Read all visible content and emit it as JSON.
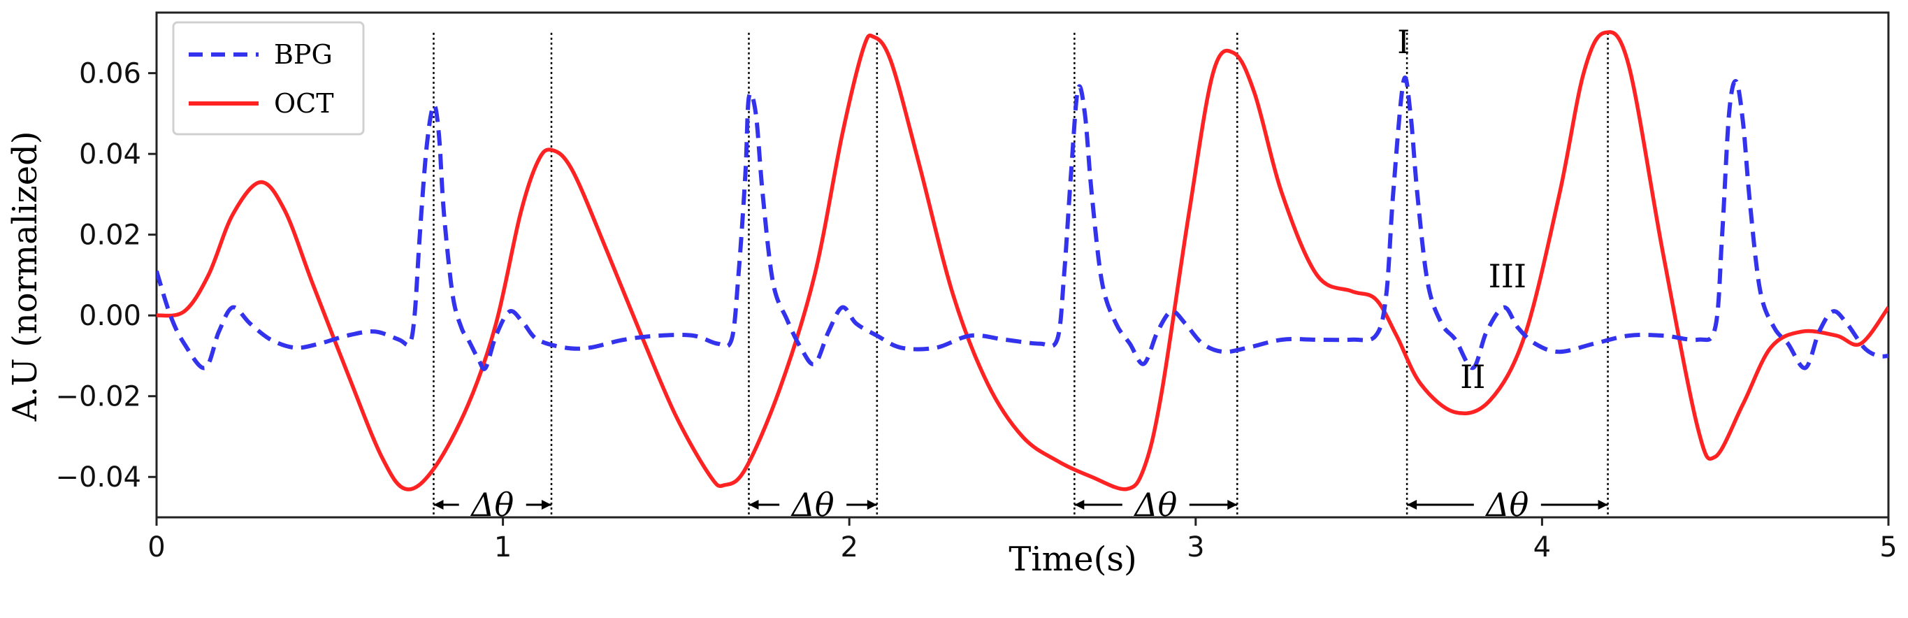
{
  "chart_data": {
    "type": "line",
    "xlabel": "Time(s)",
    "ylabel": "A.U (normalized)",
    "xlim": [
      0,
      5
    ],
    "ylim": [
      -0.05,
      0.075
    ],
    "x_ticks": [
      0,
      1,
      2,
      3,
      4,
      5
    ],
    "x_tick_labels": [
      "0",
      "1",
      "2",
      "3",
      "4",
      "5"
    ],
    "y_ticks": [
      -0.04,
      -0.02,
      0.0,
      0.02,
      0.04,
      0.06
    ],
    "y_tick_labels": [
      "−0.04",
      "−0.02",
      "0.00",
      "0.02",
      "0.04",
      "0.06"
    ],
    "grid": false,
    "legend_position": "top-left",
    "series": [
      {
        "name": "BPG",
        "style": "dashed",
        "color": "#3333ee",
        "points": [
          [
            0,
            0.011
          ],
          [
            0.04,
            0
          ],
          [
            0.08,
            -0.007
          ],
          [
            0.14,
            -0.013
          ],
          [
            0.18,
            -0.004
          ],
          [
            0.22,
            0.002
          ],
          [
            0.27,
            -0.002
          ],
          [
            0.33,
            -0.006
          ],
          [
            0.4,
            -0.008
          ],
          [
            0.47,
            -0.007
          ],
          [
            0.55,
            -0.005
          ],
          [
            0.63,
            -0.004
          ],
          [
            0.7,
            -0.006
          ],
          [
            0.73,
            -0.007
          ],
          [
            0.745,
            0
          ],
          [
            0.76,
            0.02
          ],
          [
            0.78,
            0.042
          ],
          [
            0.8,
            0.052
          ],
          [
            0.815,
            0.045
          ],
          [
            0.83,
            0.025
          ],
          [
            0.855,
            0.005
          ],
          [
            0.88,
            -0.003
          ],
          [
            0.9,
            -0.006
          ],
          [
            0.93,
            -0.011
          ],
          [
            0.95,
            -0.013
          ],
          [
            0.98,
            -0.005
          ],
          [
            1.02,
            0.001
          ],
          [
            1.06,
            -0.002
          ],
          [
            1.1,
            -0.006
          ],
          [
            1.18,
            -0.008
          ],
          [
            1.25,
            -0.008
          ],
          [
            1.35,
            -0.006
          ],
          [
            1.45,
            -0.005
          ],
          [
            1.55,
            -0.005
          ],
          [
            1.62,
            -0.007
          ],
          [
            1.66,
            -0.006
          ],
          [
            1.68,
            0.01
          ],
          [
            1.7,
            0.035
          ],
          [
            1.71,
            0.054
          ],
          [
            1.73,
            0.05
          ],
          [
            1.75,
            0.03
          ],
          [
            1.78,
            0.008
          ],
          [
            1.82,
            -0.001
          ],
          [
            1.86,
            -0.008
          ],
          [
            1.9,
            -0.012
          ],
          [
            1.94,
            -0.004
          ],
          [
            1.98,
            0.002
          ],
          [
            2.02,
            -0.002
          ],
          [
            2.08,
            -0.005
          ],
          [
            2.15,
            -0.008
          ],
          [
            2.25,
            -0.008
          ],
          [
            2.35,
            -0.005
          ],
          [
            2.45,
            -0.006
          ],
          [
            2.55,
            -0.007
          ],
          [
            2.6,
            -0.006
          ],
          [
            2.62,
            0.01
          ],
          [
            2.64,
            0.035
          ],
          [
            2.66,
            0.056
          ],
          [
            2.68,
            0.05
          ],
          [
            2.7,
            0.03
          ],
          [
            2.73,
            0.008
          ],
          [
            2.77,
            -0.002
          ],
          [
            2.81,
            -0.007
          ],
          [
            2.85,
            -0.012
          ],
          [
            2.89,
            -0.004
          ],
          [
            2.93,
            0.001
          ],
          [
            2.97,
            -0.002
          ],
          [
            3.02,
            -0.007
          ],
          [
            3.08,
            -0.009
          ],
          [
            3.15,
            -0.008
          ],
          [
            3.25,
            -0.006
          ],
          [
            3.35,
            -0.006
          ],
          [
            3.45,
            -0.006
          ],
          [
            3.52,
            -0.005
          ],
          [
            3.55,
            0.005
          ],
          [
            3.57,
            0.03
          ],
          [
            3.6,
            0.058
          ],
          [
            3.62,
            0.05
          ],
          [
            3.64,
            0.03
          ],
          [
            3.67,
            0.008
          ],
          [
            3.71,
            -0.002
          ],
          [
            3.75,
            -0.006
          ],
          [
            3.8,
            -0.013
          ],
          [
            3.84,
            -0.004
          ],
          [
            3.89,
            0.002
          ],
          [
            3.93,
            -0.003
          ],
          [
            3.98,
            -0.007
          ],
          [
            4.05,
            -0.009
          ],
          [
            4.15,
            -0.007
          ],
          [
            4.25,
            -0.005
          ],
          [
            4.35,
            -0.005
          ],
          [
            4.45,
            -0.006
          ],
          [
            4.5,
            -0.003
          ],
          [
            4.52,
            0.02
          ],
          [
            4.54,
            0.05
          ],
          [
            4.56,
            0.058
          ],
          [
            4.58,
            0.048
          ],
          [
            4.6,
            0.028
          ],
          [
            4.63,
            0.006
          ],
          [
            4.67,
            -0.003
          ],
          [
            4.71,
            -0.007
          ],
          [
            4.76,
            -0.013
          ],
          [
            4.8,
            -0.004
          ],
          [
            4.84,
            0.001
          ],
          [
            4.88,
            -0.002
          ],
          [
            4.93,
            -0.008
          ],
          [
            4.97,
            -0.01
          ],
          [
            5,
            -0.01
          ]
        ]
      },
      {
        "name": "OCT",
        "style": "solid",
        "color": "#ff2222",
        "points": [
          [
            0,
            0.0
          ],
          [
            0.08,
            0.001
          ],
          [
            0.15,
            0.01
          ],
          [
            0.22,
            0.025
          ],
          [
            0.3,
            0.033
          ],
          [
            0.37,
            0.026
          ],
          [
            0.45,
            0.008
          ],
          [
            0.55,
            -0.014
          ],
          [
            0.65,
            -0.035
          ],
          [
            0.72,
            -0.043
          ],
          [
            0.8,
            -0.038
          ],
          [
            0.9,
            -0.022
          ],
          [
            0.98,
            -0.002
          ],
          [
            1.05,
            0.025
          ],
          [
            1.1,
            0.038
          ],
          [
            1.14,
            0.041
          ],
          [
            1.2,
            0.036
          ],
          [
            1.3,
            0.016
          ],
          [
            1.4,
            -0.005
          ],
          [
            1.5,
            -0.025
          ],
          [
            1.6,
            -0.04
          ],
          [
            1.64,
            -0.042
          ],
          [
            1.7,
            -0.038
          ],
          [
            1.8,
            -0.018
          ],
          [
            1.9,
            0.01
          ],
          [
            1.98,
            0.045
          ],
          [
            2.04,
            0.066
          ],
          [
            2.07,
            0.069
          ],
          [
            2.12,
            0.063
          ],
          [
            2.2,
            0.038
          ],
          [
            2.3,
            0.005
          ],
          [
            2.4,
            -0.017
          ],
          [
            2.5,
            -0.03
          ],
          [
            2.6,
            -0.036
          ],
          [
            2.7,
            -0.04
          ],
          [
            2.8,
            -0.043
          ],
          [
            2.85,
            -0.038
          ],
          [
            2.9,
            -0.02
          ],
          [
            2.98,
            0.025
          ],
          [
            3.05,
            0.06
          ],
          [
            3.11,
            0.065
          ],
          [
            3.17,
            0.055
          ],
          [
            3.25,
            0.03
          ],
          [
            3.35,
            0.01
          ],
          [
            3.45,
            0.006
          ],
          [
            3.52,
            0.004
          ],
          [
            3.58,
            -0.005
          ],
          [
            3.65,
            -0.017
          ],
          [
            3.75,
            -0.024
          ],
          [
            3.85,
            -0.021
          ],
          [
            3.95,
            -0.005
          ],
          [
            4.05,
            0.03
          ],
          [
            4.12,
            0.06
          ],
          [
            4.18,
            0.07
          ],
          [
            4.25,
            0.062
          ],
          [
            4.35,
            0.015
          ],
          [
            4.45,
            -0.028
          ],
          [
            4.5,
            -0.035
          ],
          [
            4.58,
            -0.022
          ],
          [
            4.66,
            -0.008
          ],
          [
            4.75,
            -0.004
          ],
          [
            4.85,
            -0.005
          ],
          [
            4.92,
            -0.007
          ],
          [
            5,
            0.002
          ]
        ]
      }
    ],
    "markers": [
      {
        "x1": 0.8,
        "x2": 1.14,
        "label": "Δθ"
      },
      {
        "x1": 1.71,
        "x2": 2.08,
        "label": "Δθ"
      },
      {
        "x1": 2.65,
        "x2": 3.12,
        "label": "Δθ"
      },
      {
        "x1": 3.61,
        "x2": 4.19,
        "label": "Δθ"
      }
    ],
    "annotations": [
      {
        "text": "I",
        "x": 3.6,
        "y": 0.065
      },
      {
        "text": "II",
        "x": 3.8,
        "y": -0.018
      },
      {
        "text": "III",
        "x": 3.9,
        "y": 0.007
      }
    ]
  }
}
